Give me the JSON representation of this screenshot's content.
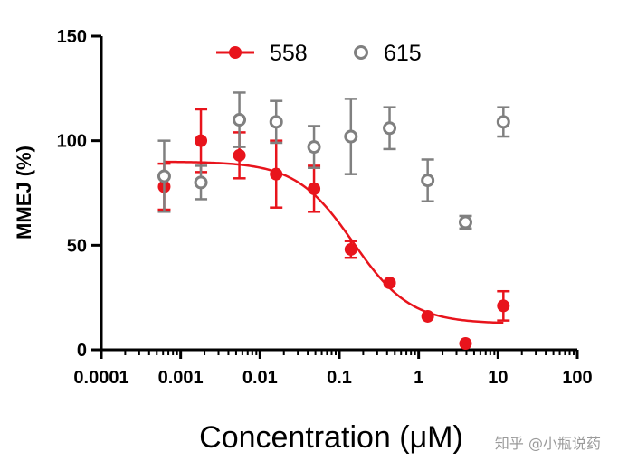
{
  "chart_data": {
    "type": "scatter",
    "xlabel": "Concentration (μM)",
    "ylabel": "MMEJ (%)",
    "x_scale": "log",
    "xlim": [
      0.0001,
      100
    ],
    "ylim": [
      0,
      150
    ],
    "x_ticks": [
      0.0001,
      0.001,
      0.01,
      0.1,
      1,
      10,
      100
    ],
    "x_tick_labels": [
      "0.0001",
      "0.001",
      "0.01",
      "0.1",
      "1",
      "10",
      "100"
    ],
    "y_ticks": [
      0,
      50,
      100,
      150
    ],
    "y_tick_labels": [
      "0",
      "50",
      "100",
      "150"
    ],
    "grid": false,
    "legend_position": "top",
    "series": [
      {
        "name": "558",
        "color": "#e8141c",
        "marker": "filled-circle",
        "points": [
          {
            "x": 0.00062,
            "y": 78,
            "err": 11
          },
          {
            "x": 0.0018,
            "y": 100,
            "err": 15
          },
          {
            "x": 0.0055,
            "y": 93,
            "err": 11
          },
          {
            "x": 0.016,
            "y": 84,
            "err": 16
          },
          {
            "x": 0.048,
            "y": 77,
            "err": 11
          },
          {
            "x": 0.14,
            "y": 48,
            "err": 4
          },
          {
            "x": 0.43,
            "y": 32,
            "err": 0
          },
          {
            "x": 1.3,
            "y": 16,
            "err": 0
          },
          {
            "x": 3.9,
            "y": 3,
            "err": 0
          },
          {
            "x": 11.7,
            "y": 21,
            "err": 7
          }
        ],
        "fit": {
          "type": "4PL",
          "top": 90,
          "bottom": 12.5,
          "ic50": 0.15,
          "hill": 1.2
        }
      },
      {
        "name": "615",
        "color": "#808080",
        "marker": "open-circle",
        "points": [
          {
            "x": 0.00062,
            "y": 83,
            "err": 17
          },
          {
            "x": 0.0018,
            "y": 80,
            "err": 8
          },
          {
            "x": 0.0055,
            "y": 110,
            "err": 13
          },
          {
            "x": 0.016,
            "y": 109,
            "err": 10
          },
          {
            "x": 0.048,
            "y": 97,
            "err": 10
          },
          {
            "x": 0.14,
            "y": 102,
            "err": 18
          },
          {
            "x": 0.43,
            "y": 106,
            "err": 10
          },
          {
            "x": 1.3,
            "y": 81,
            "err": 10
          },
          {
            "x": 3.9,
            "y": 61,
            "err": 3
          },
          {
            "x": 11.7,
            "y": 109,
            "err": 7
          }
        ]
      }
    ]
  },
  "watermark": "知乎 @小瓶说药"
}
